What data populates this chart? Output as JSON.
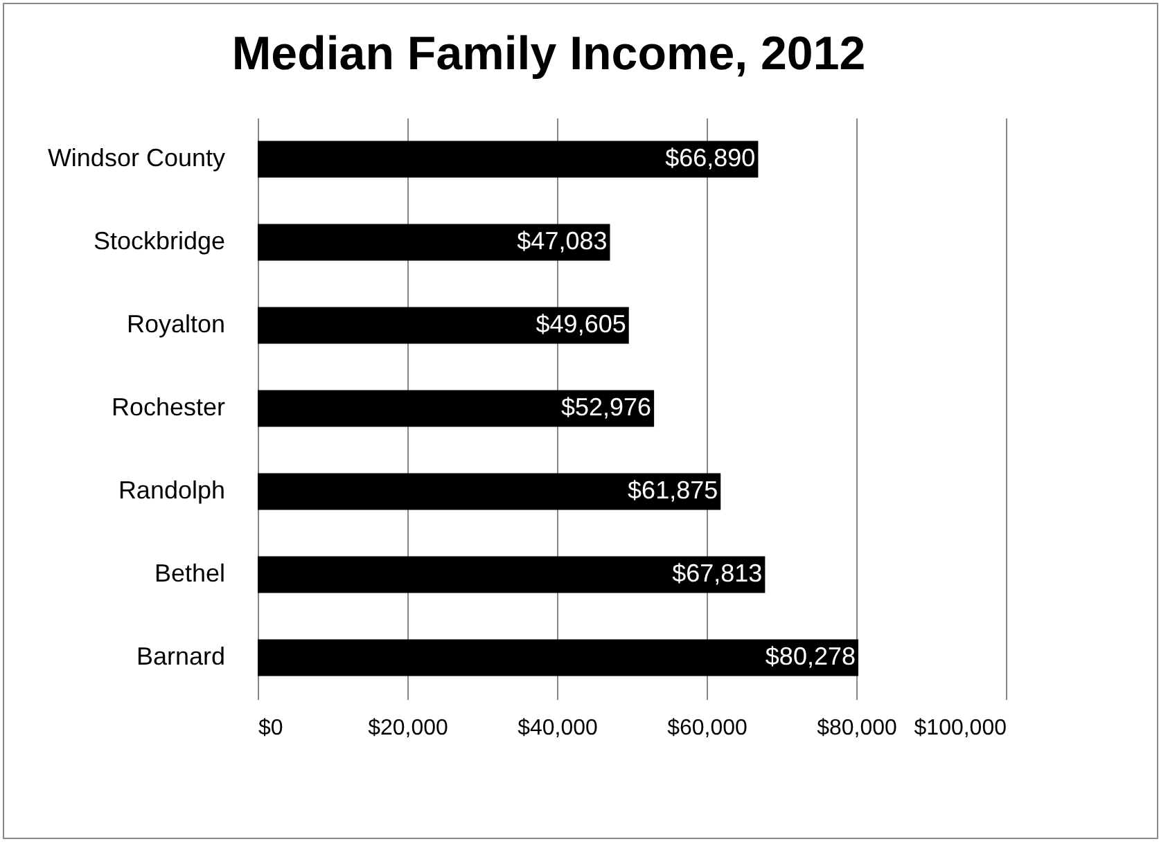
{
  "chart_data": {
    "type": "bar",
    "title": "Median Family Income, 2012",
    "orientation": "horizontal",
    "categories": [
      "Windsor County",
      "Stockbridge",
      "Royalton",
      "Rochester",
      "Randolph",
      "Bethel",
      "Barnard"
    ],
    "values": [
      66890,
      47083,
      49605,
      52976,
      61875,
      67813,
      80278
    ],
    "value_labels": [
      "$66,890",
      "$47,083",
      "$49,605",
      "$52,976",
      "$61,875",
      "$67,813",
      "$80,278"
    ],
    "color": "#000000",
    "xlim": [
      0,
      100000
    ],
    "xticks": [
      {
        "value": 0,
        "label": "$0"
      },
      {
        "value": 20000,
        "label": "$20,000"
      },
      {
        "value": 40000,
        "label": "$40,000"
      },
      {
        "value": 60000,
        "label": "$60,000"
      },
      {
        "value": 80000,
        "label": "$80,000"
      },
      {
        "value": 100000,
        "label": "$100,000"
      }
    ],
    "grid": "x"
  }
}
